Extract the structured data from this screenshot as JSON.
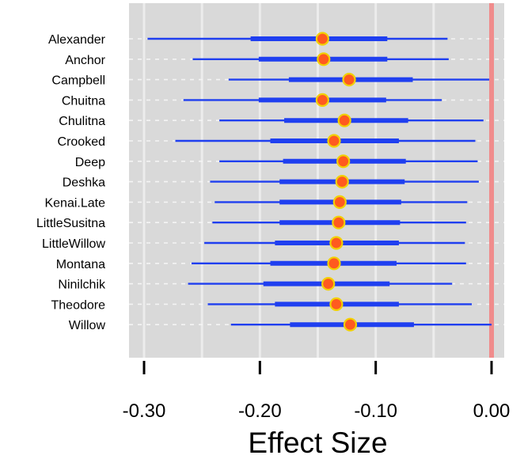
{
  "chart_data": {
    "type": "scatter",
    "subtype": "forest-plot",
    "title": "",
    "xlabel": "Effect Size",
    "ylabel": "",
    "xlim": [
      -0.315,
      0.005
    ],
    "xticks": [
      -0.3,
      -0.2,
      -0.1,
      0.0
    ],
    "xtick_labels": [
      "-0.30",
      "-0.20",
      "-0.10",
      "0.00"
    ],
    "reference_line": 0.0,
    "grid": true,
    "colors": {
      "panel_bg": "#d9d9d9",
      "grid": "#ececec",
      "interval": "#1f3ff0",
      "point_fill": "#ff5a1f",
      "point_edge": "#f2d000",
      "reference": "#f08c8c"
    },
    "series": [
      {
        "label": "Alexander",
        "median": -0.146,
        "inner": [
          -0.208,
          -0.09
        ],
        "outer": [
          -0.297,
          -0.038
        ]
      },
      {
        "label": "Anchor",
        "median": -0.145,
        "inner": [
          -0.201,
          -0.09
        ],
        "outer": [
          -0.258,
          -0.037
        ]
      },
      {
        "label": "Campbell",
        "median": -0.123,
        "inner": [
          -0.175,
          -0.068
        ],
        "outer": [
          -0.227,
          -0.002
        ]
      },
      {
        "label": "Chuitna",
        "median": -0.146,
        "inner": [
          -0.201,
          -0.091
        ],
        "outer": [
          -0.266,
          -0.043
        ]
      },
      {
        "label": "Chulitna",
        "median": -0.127,
        "inner": [
          -0.179,
          -0.072
        ],
        "outer": [
          -0.235,
          -0.007
        ]
      },
      {
        "label": "Crooked",
        "median": -0.136,
        "inner": [
          -0.191,
          -0.08
        ],
        "outer": [
          -0.273,
          -0.014
        ]
      },
      {
        "label": "Deep",
        "median": -0.128,
        "inner": [
          -0.18,
          -0.074
        ],
        "outer": [
          -0.235,
          -0.012
        ]
      },
      {
        "label": "Deshka",
        "median": -0.129,
        "inner": [
          -0.183,
          -0.075
        ],
        "outer": [
          -0.243,
          -0.011
        ]
      },
      {
        "label": "Kenai.Late",
        "median": -0.131,
        "inner": [
          -0.183,
          -0.078
        ],
        "outer": [
          -0.239,
          -0.021
        ]
      },
      {
        "label": "LittleSusitna",
        "median": -0.132,
        "inner": [
          -0.183,
          -0.079
        ],
        "outer": [
          -0.241,
          -0.022
        ]
      },
      {
        "label": "LittleWillow",
        "median": -0.134,
        "inner": [
          -0.187,
          -0.08
        ],
        "outer": [
          -0.248,
          -0.023
        ]
      },
      {
        "label": "Montana",
        "median": -0.136,
        "inner": [
          -0.191,
          -0.082
        ],
        "outer": [
          -0.259,
          -0.022
        ]
      },
      {
        "label": "Ninilchik",
        "median": -0.141,
        "inner": [
          -0.197,
          -0.088
        ],
        "outer": [
          -0.262,
          -0.034
        ]
      },
      {
        "label": "Theodore",
        "median": -0.134,
        "inner": [
          -0.187,
          -0.08
        ],
        "outer": [
          -0.245,
          -0.017
        ]
      },
      {
        "label": "Willow",
        "median": -0.122,
        "inner": [
          -0.174,
          -0.067
        ],
        "outer": [
          -0.225,
          0.0
        ]
      }
    ]
  }
}
